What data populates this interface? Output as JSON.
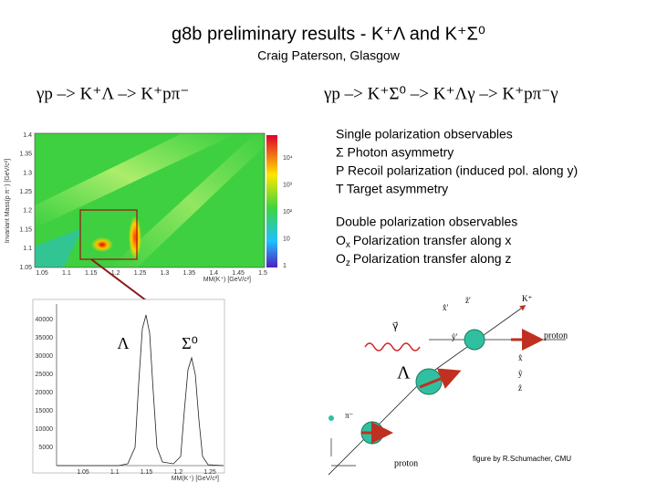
{
  "header": {
    "title": "g8b preliminary results - K⁺Λ and K⁺Σ⁰",
    "subtitle": "Craig Paterson, Glasgow"
  },
  "reactions": {
    "left": "γp –> K⁺Λ –> K⁺pπ⁻",
    "right": "γp –> K⁺Σ⁰ –> K⁺Λγ –> K⁺pπ⁻γ"
  },
  "single": {
    "heading": "Single polarization observables",
    "items": [
      "Σ Photon asymmetry",
      "P Recoil polarization (induced pol. along y)",
      "T Target asymmetry"
    ]
  },
  "double": {
    "heading": "Double polarization observables",
    "items": [
      {
        "symbol": "O",
        "sub": "x",
        "text": "Polarization transfer along x"
      },
      {
        "symbol": "O",
        "sub": "z",
        "text": "Polarization transfer along z"
      }
    ]
  },
  "heatmap": {
    "ylabel": "Invariant Mass(p π⁻) [GeV/c²]",
    "xlabel": "MM(K⁺) [GeV/c²]",
    "yticks": [
      "1.4",
      "1.35",
      "1.3",
      "1.25",
      "1.2",
      "1.15",
      "1.1",
      "1.05"
    ],
    "xticks": [
      "1.05",
      "1.1",
      "1.15",
      "1.2",
      "1.25",
      "1.3",
      "1.35",
      "1.4",
      "1.45",
      "1.5"
    ],
    "colorbar": [
      "10⁴",
      "10³",
      "10²",
      "10",
      "1"
    ]
  },
  "histogram": {
    "xlabel": "MM(K⁺) [GeV/c²]",
    "yticks": [
      "40000",
      "35000",
      "30000",
      "25000",
      "20000",
      "15000",
      "10000",
      "5000"
    ],
    "xticks": [
      "1.05",
      "1.1",
      "1.15",
      "1.2",
      "1.25"
    ],
    "peaks": [
      "Λ",
      "Σ⁰"
    ]
  },
  "diagram": {
    "labels": [
      "K⁺",
      "γ⃗",
      "proton",
      "Λ",
      "π⁻",
      "proton",
      "x̂'",
      "ẑ'",
      "ŷ'",
      "x̂",
      "ŷ",
      "ẑ"
    ],
    "caption": "figure by  R.Schumacher, CMU"
  }
}
